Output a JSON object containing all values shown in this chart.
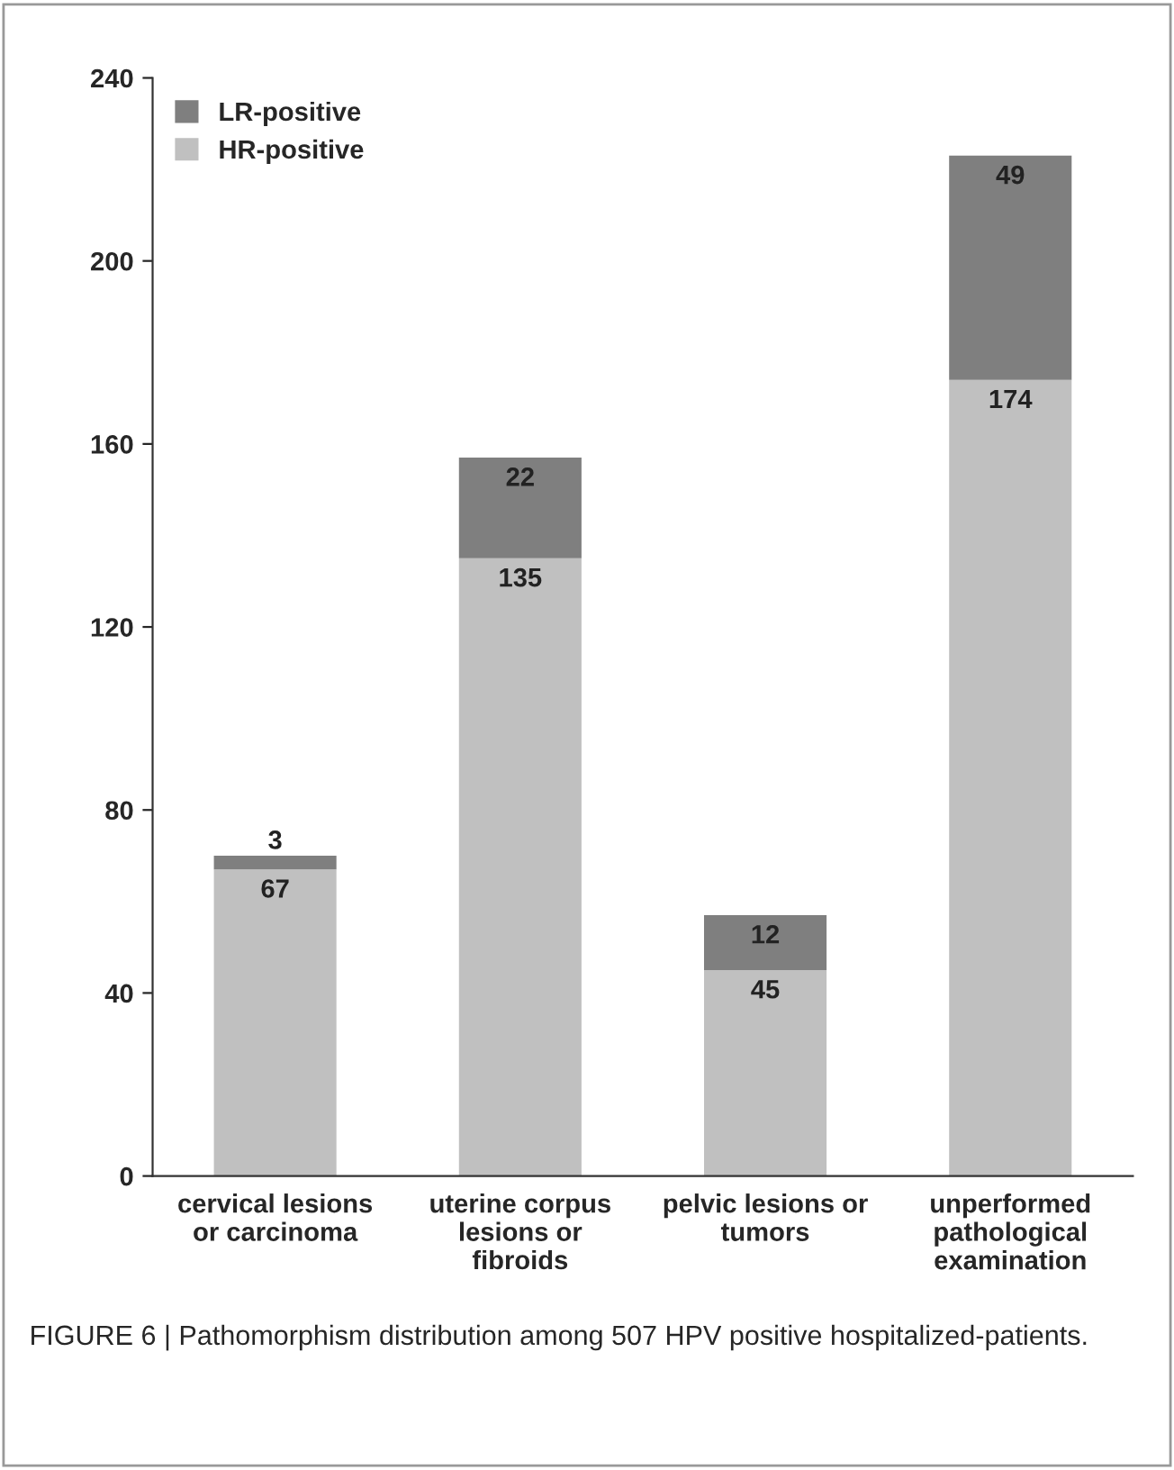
{
  "chart_data": {
    "type": "bar",
    "stacked": true,
    "categories": [
      "cervical lesions\nor carcinoma",
      "uterine corpus\nlesions or\nfibroids",
      "pelvic lesions or\ntumors",
      "unperformed\npathological\nexamination"
    ],
    "series": [
      {
        "name": "HR-positive",
        "color": "#c0c0c0",
        "values": [
          67,
          135,
          45,
          174
        ]
      },
      {
        "name": "LR-positive",
        "color": "#7f7f7f",
        "values": [
          3,
          22,
          12,
          49
        ]
      }
    ],
    "ylim": [
      0,
      240
    ],
    "yticks": [
      0,
      40,
      80,
      120,
      160,
      200,
      240
    ],
    "grid": false,
    "legend": "top left",
    "data_labels": true,
    "annotations": [
      "FIGURE 6 | Pathomorphism distribution among 507 HPV positive hospitalized-patients."
    ]
  }
}
